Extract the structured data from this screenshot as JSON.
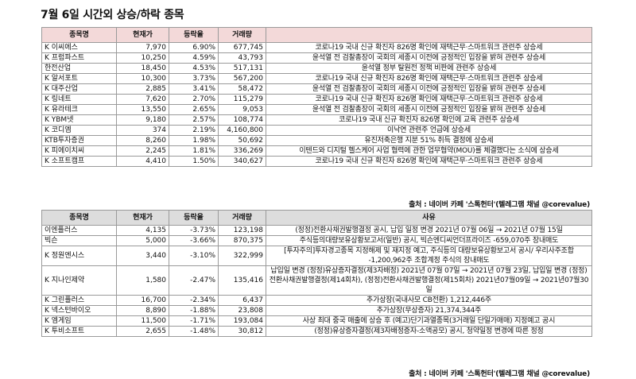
{
  "title": "7월 6일  시간외 상승/하락 종목",
  "rising": {
    "headers": [
      "종목명",
      "현재가",
      "등락율",
      "거래량",
      ""
    ],
    "rows": [
      {
        "name": "K 이씨에스",
        "price": "7,970",
        "rate": "6.90%",
        "volume": "677,745",
        "reason": "코로나19 국내 신규 확진자 826명 확인에 재택근무·스마트워크 관련주 상승세"
      },
      {
        "name": "K 프럼파스트",
        "price": "10,250",
        "rate": "4.59%",
        "volume": "43,793",
        "reason": "윤석열 전 검찰총장이 국회의 세종시 이전에 긍정적인 입장을 밝혀 관련주 상승세"
      },
      {
        "name": "한전산업",
        "price": "18,450",
        "rate": "4.53%",
        "volume": "517,131",
        "reason": "윤석열 정부 탈원전 정책 비판에 관련주 상승세"
      },
      {
        "name": "K 알서포트",
        "price": "10,300",
        "rate": "3.73%",
        "volume": "567,200",
        "reason": "코로나19 국내 신규 확진자 826명 확인에 재택근무·스마트워크 관련주 상승세"
      },
      {
        "name": "K 대주산업",
        "price": "2,885",
        "rate": "3.41%",
        "volume": "58,472",
        "reason": "윤석열 전 검찰총장이 국회의 세종시 이전에 긍정적인 입장을 밝혀 관련주 상승세"
      },
      {
        "name": "K 링네트",
        "price": "7,620",
        "rate": "2.70%",
        "volume": "115,279",
        "reason": "코로나19 국내 신규 확진자 826명 확인에 재택근무·스마트워크 관련주 상승세"
      },
      {
        "name": "K 유라테크",
        "price": "13,550",
        "rate": "2.65%",
        "volume": "9,053",
        "reason": "윤석열 전 검찰총장이 국회의 세종시 이전에 긍정적인 입장을 밝혀 관련주 상승세"
      },
      {
        "name": "K YBM넷",
        "price": "9,180",
        "rate": "2.57%",
        "volume": "108,774",
        "reason": "코로나19 국내 신규 확진자 826명 확인에 교육 관련주 상승세"
      },
      {
        "name": "K 코디엠",
        "price": "374",
        "rate": "2.19%",
        "volume": "4,160,800",
        "reason": "이낙연 관련주 언급에 상승세"
      },
      {
        "name": "KTB투자증권",
        "price": "8,260",
        "rate": "1.98%",
        "volume": "50,692",
        "reason": "유진저축은행 지분 51% 취득 결정에 상승세"
      },
      {
        "name": "K 피에이치씨",
        "price": "2,245",
        "rate": "1.81%",
        "volume": "336,269",
        "reason": "이텐드와 디지털 헬스케어 사업 협력에 관한 업무협약(MOU)를 체결했다는 소식에 상승세"
      },
      {
        "name": "K 소프트캠프",
        "price": "4,410",
        "rate": "1.50%",
        "volume": "340,627",
        "reason": "코로나19 국내 신규 확진자 826명 확인에 재택근무·스마트워크 관련주 상승세"
      }
    ],
    "source": "출처 : 네이버 카페 '스톡헌터'(텔레그램 채널 @corevalue)"
  },
  "falling": {
    "headers": [
      "종목명",
      "현재가",
      "등락율",
      "거래량",
      "사유"
    ],
    "rows": [
      {
        "name": "이엔플러스",
        "price": "4,135",
        "rate": "-3.73%",
        "volume": "123,198",
        "reason": "(정정)전환사채권발행결정 공시, 납입 일정 변경 2021년 07월 06일 → 2021년 07월 15일"
      },
      {
        "name": "빅슨",
        "price": "5,000",
        "rate": "-3.66%",
        "volume": "870,375",
        "reason": "주식등의대량보유상황보고서(일반) 공시, 빅슨엔디씨언더프라이즈 -659,070주 장내매도"
      },
      {
        "name": "K 정원엔시스",
        "price": "3,440",
        "rate": "-3.10%",
        "volume": "322,999",
        "reason": "[투자주의]투자경고종목 지정해제 및 재지정 예고, 주식등의 대량보유상황보고서 공시/ 우리사주조합 -1,200,962주 조합계정 주식의 장내매도"
      },
      {
        "name": "K 지나인제약",
        "price": "1,580",
        "rate": "-2.47%",
        "volume": "135,416",
        "reason": "납입일 변경 (정정)유상증자결정(제3자배정) 2021년 07월 07일 → 2021년 07월 23일, 납입일 변경 (정정)전환사채권발행결정(제14회차), (정정)전환사채권발행결정(제15회차) 2021년07월09일 → 2021년07월30일"
      },
      {
        "name": "K 그린플러스",
        "price": "16,700",
        "rate": "-2.34%",
        "volume": "6,437",
        "reason": "추가상장(국내사모 CB전환) 1,212,446주"
      },
      {
        "name": "K 넥스턴바이오",
        "price": "8,890",
        "rate": "-1.88%",
        "volume": "23,808",
        "reason": "추가상장(무상증자) 21,374,344주"
      },
      {
        "name": "K 엠게임",
        "price": "11,500",
        "rate": "-1.71%",
        "volume": "193,084",
        "reason": "사상 최대 중국 매출에 상승 후 (예고)단기과열종목(3거래일 단일가매매) 지정예고 공시"
      },
      {
        "name": "K 투비소프트",
        "price": "2,655",
        "rate": "-1.48%",
        "volume": "30,812",
        "reason": "(정정)유상증자결정(제3자배정증자-소액공모) 공시, 청약일정 변경에 따른 정정"
      }
    ],
    "source": "출처 : 네이버 카페 '스톡헌터'(텔레그램 채널 @corevalue)"
  }
}
